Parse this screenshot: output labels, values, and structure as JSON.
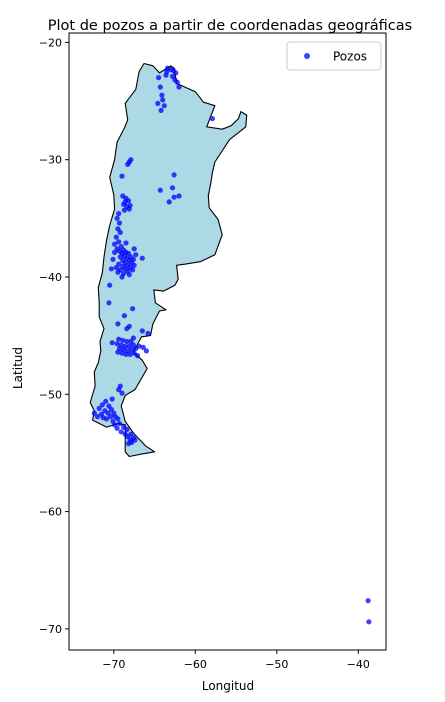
{
  "chart_data": {
    "type": "scatter",
    "title": "Plot de pozos a partir de coordenadas geográficas",
    "xlabel": "Longitud",
    "ylabel": "Latitud",
    "xlim": [
      -75.5,
      -36.6
    ],
    "ylim": [
      -71.8,
      -19.2
    ],
    "xticks": [
      -70,
      -60,
      -50,
      -40
    ],
    "yticks": [
      -20,
      -30,
      -40,
      -50,
      -60,
      -70
    ],
    "xtick_labels": [
      "−70",
      "−60",
      "−50",
      "−40"
    ],
    "ytick_labels": [
      "−20",
      "−30",
      "−40",
      "−50",
      "−60",
      "−70"
    ],
    "grid": false,
    "legend": {
      "position": "top-right",
      "entries": [
        "Pozos"
      ]
    },
    "colors": {
      "land_fill": "#add8e6",
      "land_edge": "#000000",
      "points": "#0000ff"
    },
    "background_map": {
      "name": "Argentina",
      "outline": [
        [
          -66.3,
          -21.8
        ],
        [
          -65.2,
          -22.0
        ],
        [
          -64.4,
          -22.6
        ],
        [
          -63.0,
          -22.0
        ],
        [
          -62.6,
          -22.2
        ],
        [
          -62.3,
          -23.5
        ],
        [
          -61.0,
          -23.9
        ],
        [
          -60.0,
          -24.2
        ],
        [
          -59.0,
          -25.1
        ],
        [
          -57.6,
          -25.4
        ],
        [
          -58.6,
          -27.2
        ],
        [
          -56.7,
          -27.4
        ],
        [
          -55.6,
          -27.1
        ],
        [
          -54.7,
          -26.5
        ],
        [
          -54.4,
          -25.9
        ],
        [
          -53.7,
          -26.2
        ],
        [
          -53.8,
          -27.2
        ],
        [
          -55.8,
          -28.3
        ],
        [
          -57.6,
          -30.2
        ],
        [
          -57.9,
          -31.1
        ],
        [
          -58.1,
          -32.0
        ],
        [
          -58.4,
          -33.1
        ],
        [
          -58.3,
          -34.1
        ],
        [
          -57.2,
          -35.1
        ],
        [
          -56.7,
          -36.4
        ],
        [
          -57.6,
          -38.1
        ],
        [
          -59.4,
          -38.7
        ],
        [
          -61.2,
          -38.9
        ],
        [
          -62.3,
          -39.0
        ],
        [
          -62.1,
          -40.2
        ],
        [
          -62.5,
          -40.7
        ],
        [
          -63.9,
          -41.2
        ],
        [
          -65.1,
          -41.1
        ],
        [
          -64.9,
          -42.2
        ],
        [
          -63.6,
          -42.8
        ],
        [
          -64.4,
          -42.9
        ],
        [
          -65.2,
          -44.0
        ],
        [
          -65.5,
          -45.0
        ],
        [
          -66.6,
          -45.1
        ],
        [
          -67.6,
          -46.4
        ],
        [
          -66.5,
          -47.1
        ],
        [
          -65.9,
          -47.8
        ],
        [
          -67.4,
          -49.6
        ],
        [
          -68.6,
          -50.1
        ],
        [
          -69.1,
          -51.0
        ],
        [
          -68.6,
          -52.3
        ],
        [
          -67.6,
          -53.3
        ],
        [
          -66.1,
          -54.4
        ],
        [
          -65.0,
          -54.9
        ],
        [
          -66.6,
          -55.1
        ],
        [
          -68.1,
          -55.3
        ],
        [
          -68.6,
          -54.9
        ],
        [
          -68.6,
          -52.6
        ],
        [
          -69.5,
          -52.5
        ],
        [
          -70.9,
          -52.8
        ],
        [
          -72.6,
          -52.2
        ],
        [
          -72.4,
          -51.4
        ],
        [
          -72.9,
          -50.7
        ],
        [
          -72.3,
          -49.3
        ],
        [
          -72.4,
          -48.1
        ],
        [
          -71.9,
          -47.3
        ],
        [
          -71.6,
          -46.3
        ],
        [
          -71.7,
          -45.5
        ],
        [
          -71.2,
          -44.4
        ],
        [
          -71.8,
          -43.4
        ],
        [
          -71.8,
          -42.2
        ],
        [
          -71.9,
          -40.9
        ],
        [
          -71.4,
          -39.6
        ],
        [
          -71.2,
          -38.3
        ],
        [
          -70.9,
          -36.9
        ],
        [
          -70.5,
          -35.6
        ],
        [
          -69.9,
          -34.2
        ],
        [
          -70.0,
          -33.0
        ],
        [
          -70.5,
          -31.5
        ],
        [
          -69.9,
          -30.0
        ],
        [
          -69.6,
          -28.5
        ],
        [
          -68.7,
          -27.3
        ],
        [
          -68.3,
          -26.6
        ],
        [
          -68.6,
          -25.2
        ],
        [
          -67.3,
          -24.0
        ],
        [
          -66.9,
          -22.5
        ],
        [
          -66.3,
          -21.8
        ]
      ]
    },
    "series": [
      {
        "name": "Pozos",
        "points": [
          [
            -63.4,
            -22.2
          ],
          [
            -63.0,
            -22.3
          ],
          [
            -62.7,
            -22.4
          ],
          [
            -62.4,
            -22.6
          ],
          [
            -63.5,
            -22.5
          ],
          [
            -62.8,
            -22.9
          ],
          [
            -62.5,
            -23.2
          ],
          [
            -62.2,
            -23.4
          ],
          [
            -63.6,
            -22.8
          ],
          [
            -62.0,
            -23.8
          ],
          [
            -64.5,
            -23.0
          ],
          [
            -64.3,
            -23.8
          ],
          [
            -64.1,
            -24.5
          ],
          [
            -64.6,
            -25.2
          ],
          [
            -64.2,
            -25.8
          ],
          [
            -63.8,
            -25.4
          ],
          [
            -64.0,
            -24.9
          ],
          [
            -57.9,
            -26.5
          ],
          [
            -68.1,
            -30.2
          ],
          [
            -67.9,
            -30.0
          ],
          [
            -68.3,
            -30.4
          ],
          [
            -69.0,
            -31.4
          ],
          [
            -64.3,
            -32.6
          ],
          [
            -62.6,
            -31.3
          ],
          [
            -62.8,
            -32.4
          ],
          [
            -62.0,
            -33.1
          ],
          [
            -62.6,
            -33.2
          ],
          [
            -63.2,
            -33.6
          ],
          [
            -68.9,
            -33.1
          ],
          [
            -68.5,
            -33.3
          ],
          [
            -68.2,
            -33.5
          ],
          [
            -68.8,
            -33.8
          ],
          [
            -68.4,
            -34.0
          ],
          [
            -68.6,
            -33.6
          ],
          [
            -68.0,
            -33.9
          ],
          [
            -68.7,
            -34.3
          ],
          [
            -68.1,
            -34.2
          ],
          [
            -69.4,
            -34.6
          ],
          [
            -69.6,
            -35.0
          ],
          [
            -69.3,
            -35.4
          ],
          [
            -69.5,
            -35.9
          ],
          [
            -69.2,
            -36.2
          ],
          [
            -69.7,
            -36.6
          ],
          [
            -69.4,
            -37.0
          ],
          [
            -69.9,
            -37.2
          ],
          [
            -69.1,
            -37.4
          ],
          [
            -69.6,
            -37.6
          ],
          [
            -68.8,
            -37.7
          ],
          [
            -69.3,
            -37.8
          ],
          [
            -68.5,
            -37.9
          ],
          [
            -69.0,
            -38.0
          ],
          [
            -68.2,
            -38.0
          ],
          [
            -68.7,
            -38.2
          ],
          [
            -67.9,
            -38.3
          ],
          [
            -68.4,
            -38.4
          ],
          [
            -69.2,
            -38.3
          ],
          [
            -67.6,
            -38.5
          ],
          [
            -68.1,
            -38.6
          ],
          [
            -68.9,
            -38.6
          ],
          [
            -67.8,
            -38.8
          ],
          [
            -68.6,
            -38.8
          ],
          [
            -69.4,
            -38.9
          ],
          [
            -68.3,
            -39.0
          ],
          [
            -67.5,
            -39.0
          ],
          [
            -68.9,
            -39.1
          ],
          [
            -68.0,
            -39.2
          ],
          [
            -68.6,
            -39.3
          ],
          [
            -69.2,
            -39.4
          ],
          [
            -68.3,
            -39.5
          ],
          [
            -67.7,
            -39.4
          ],
          [
            -68.8,
            -39.7
          ],
          [
            -69.5,
            -39.6
          ],
          [
            -68.1,
            -39.8
          ],
          [
            -69.0,
            -40.0
          ],
          [
            -69.9,
            -37.9
          ],
          [
            -70.1,
            -38.5
          ],
          [
            -69.7,
            -39.2
          ],
          [
            -67.3,
            -38.1
          ],
          [
            -67.5,
            -37.6
          ],
          [
            -70.3,
            -39.3
          ],
          [
            -68.5,
            -37.1
          ],
          [
            -66.5,
            -38.4
          ],
          [
            -70.5,
            -40.7
          ],
          [
            -70.6,
            -42.2
          ],
          [
            -68.7,
            -43.3
          ],
          [
            -67.7,
            -42.7
          ],
          [
            -69.5,
            -44.0
          ],
          [
            -68.1,
            -44.2
          ],
          [
            -68.4,
            -44.4
          ],
          [
            -66.5,
            -44.6
          ],
          [
            -65.8,
            -44.8
          ],
          [
            -69.4,
            -45.3
          ],
          [
            -68.9,
            -45.4
          ],
          [
            -68.4,
            -45.5
          ],
          [
            -67.9,
            -45.5
          ],
          [
            -69.6,
            -45.7
          ],
          [
            -69.1,
            -45.8
          ],
          [
            -68.6,
            -45.9
          ],
          [
            -68.1,
            -45.9
          ],
          [
            -67.6,
            -45.8
          ],
          [
            -69.3,
            -46.1
          ],
          [
            -68.8,
            -46.2
          ],
          [
            -68.3,
            -46.3
          ],
          [
            -67.8,
            -46.2
          ],
          [
            -67.3,
            -46.1
          ],
          [
            -69.0,
            -46.5
          ],
          [
            -68.5,
            -46.6
          ],
          [
            -68.0,
            -46.6
          ],
          [
            -67.5,
            -46.5
          ],
          [
            -69.5,
            -46.4
          ],
          [
            -66.9,
            -45.9
          ],
          [
            -66.4,
            -46.0
          ],
          [
            -66.0,
            -46.3
          ],
          [
            -67.1,
            -46.7
          ],
          [
            -70.2,
            -45.6
          ],
          [
            -67.6,
            -45.2
          ],
          [
            -69.2,
            -49.3
          ],
          [
            -69.4,
            -49.6
          ],
          [
            -69.0,
            -49.9
          ],
          [
            -70.2,
            -50.4
          ],
          [
            -71.0,
            -50.6
          ],
          [
            -71.4,
            -50.9
          ],
          [
            -70.6,
            -51.0
          ],
          [
            -71.8,
            -51.2
          ],
          [
            -70.3,
            -51.3
          ],
          [
            -71.1,
            -51.4
          ],
          [
            -70.7,
            -51.6
          ],
          [
            -70.0,
            -51.6
          ],
          [
            -71.5,
            -51.7
          ],
          [
            -70.4,
            -51.9
          ],
          [
            -69.8,
            -51.9
          ],
          [
            -71.3,
            -52.0
          ],
          [
            -70.9,
            -52.1
          ],
          [
            -69.5,
            -52.1
          ],
          [
            -70.1,
            -52.3
          ],
          [
            -69.3,
            -52.5
          ],
          [
            -69.9,
            -52.6
          ],
          [
            -69.6,
            -52.9
          ],
          [
            -68.8,
            -52.8
          ],
          [
            -68.4,
            -53.0
          ],
          [
            -69.1,
            -53.2
          ],
          [
            -68.6,
            -53.4
          ],
          [
            -67.9,
            -53.4
          ],
          [
            -68.3,
            -53.6
          ],
          [
            -67.6,
            -53.7
          ],
          [
            -68.0,
            -53.9
          ],
          [
            -67.4,
            -53.9
          ],
          [
            -67.8,
            -54.1
          ],
          [
            -68.2,
            -54.2
          ],
          [
            -72.4,
            -51.6
          ],
          [
            -72.0,
            -51.9
          ],
          [
            -38.8,
            -67.6
          ],
          [
            -38.7,
            -69.4
          ]
        ]
      }
    ]
  }
}
